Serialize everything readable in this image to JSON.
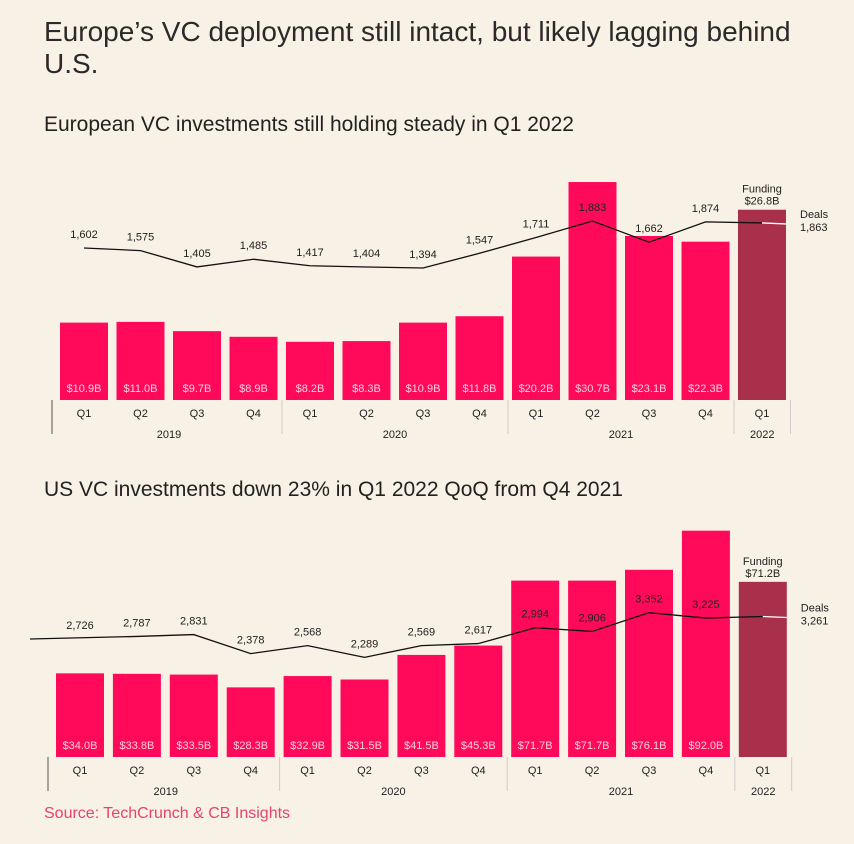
{
  "title": "Europe’s VC deployment still intact, but likely lagging behind U.S.",
  "source": "Source: TechCrunch & CB Insights",
  "colors": {
    "bar": "#ff0a5a",
    "highlight_bar": "#a8304a",
    "line": "#111111",
    "background": "#f8f1e5",
    "source_text": "#e8436b"
  },
  "chart_data": [
    {
      "type": "bar+line",
      "title": "European VC investments still holding steady in Q1 2022",
      "categories": [
        "Q1",
        "Q2",
        "Q3",
        "Q4",
        "Q1",
        "Q2",
        "Q3",
        "Q4",
        "Q1",
        "Q2",
        "Q3",
        "Q4",
        "Q1"
      ],
      "years": [
        {
          "label": "2019",
          "span": 4
        },
        {
          "label": "2020",
          "span": 4
        },
        {
          "label": "2021",
          "span": 4
        },
        {
          "label": "2022",
          "span": 1
        }
      ],
      "funding": {
        "name": "Funding",
        "values": [
          10.9,
          11.0,
          9.7,
          8.9,
          8.2,
          8.3,
          10.9,
          11.8,
          20.2,
          30.7,
          23.1,
          22.3,
          26.8
        ],
        "labels": [
          "$10.9B",
          "$11.0B",
          "$9.7B",
          "$8.9B",
          "$8.2B",
          "$8.3B",
          "$10.9B",
          "$11.8B",
          "$20.2B",
          "$30.7B",
          "$23.1B",
          "$22.3B",
          "$26.8B"
        ]
      },
      "deals": {
        "name": "Deals",
        "values": [
          1602,
          1575,
          1405,
          1485,
          1417,
          1404,
          1394,
          1547,
          1711,
          1883,
          1662,
          1874,
          1863
        ],
        "labels": [
          "1,602",
          "1,575",
          "1,405",
          "1,485",
          "1,417",
          "1,404",
          "1,394",
          "1,547",
          "1,711",
          "1,883",
          "1,662",
          "1,874",
          "1,863"
        ]
      }
    },
    {
      "type": "bar+line",
      "title": "US VC investments down 23% in Q1 2022 QoQ from Q4 2021",
      "categories": [
        "Q1",
        "Q2",
        "Q3",
        "Q4",
        "Q1",
        "Q2",
        "Q3",
        "Q4",
        "Q1",
        "Q2",
        "Q3",
        "Q4",
        "Q1"
      ],
      "years": [
        {
          "label": "2019",
          "span": 4
        },
        {
          "label": "2020",
          "span": 4
        },
        {
          "label": "2021",
          "span": 4
        },
        {
          "label": "2022",
          "span": 1
        }
      ],
      "funding": {
        "name": "Funding",
        "values": [
          34.0,
          33.8,
          33.5,
          28.3,
          32.9,
          31.5,
          41.5,
          45.3,
          71.7,
          71.7,
          76.1,
          92.0,
          71.2
        ],
        "labels": [
          "$34.0B",
          "$33.8B",
          "$33.5B",
          "$28.3B",
          "$32.9B",
          "$31.5B",
          "$41.5B",
          "$45.3B",
          "$71.7B",
          "$71.7B",
          "$76.1B",
          "$92.0B",
          "$71.2B"
        ]
      },
      "deals": {
        "name": "Deals",
        "values": [
          2726,
          2787,
          2831,
          2378,
          2568,
          2289,
          2569,
          2617,
          2994,
          2906,
          3352,
          3225,
          3261
        ],
        "labels": [
          "2,726",
          "2,787",
          "2,831",
          "2,378",
          "2,568",
          "2,289",
          "2,569",
          "2,617",
          "2,994",
          "2,906",
          "3,352",
          "3,225",
          "3,261"
        ]
      }
    }
  ]
}
